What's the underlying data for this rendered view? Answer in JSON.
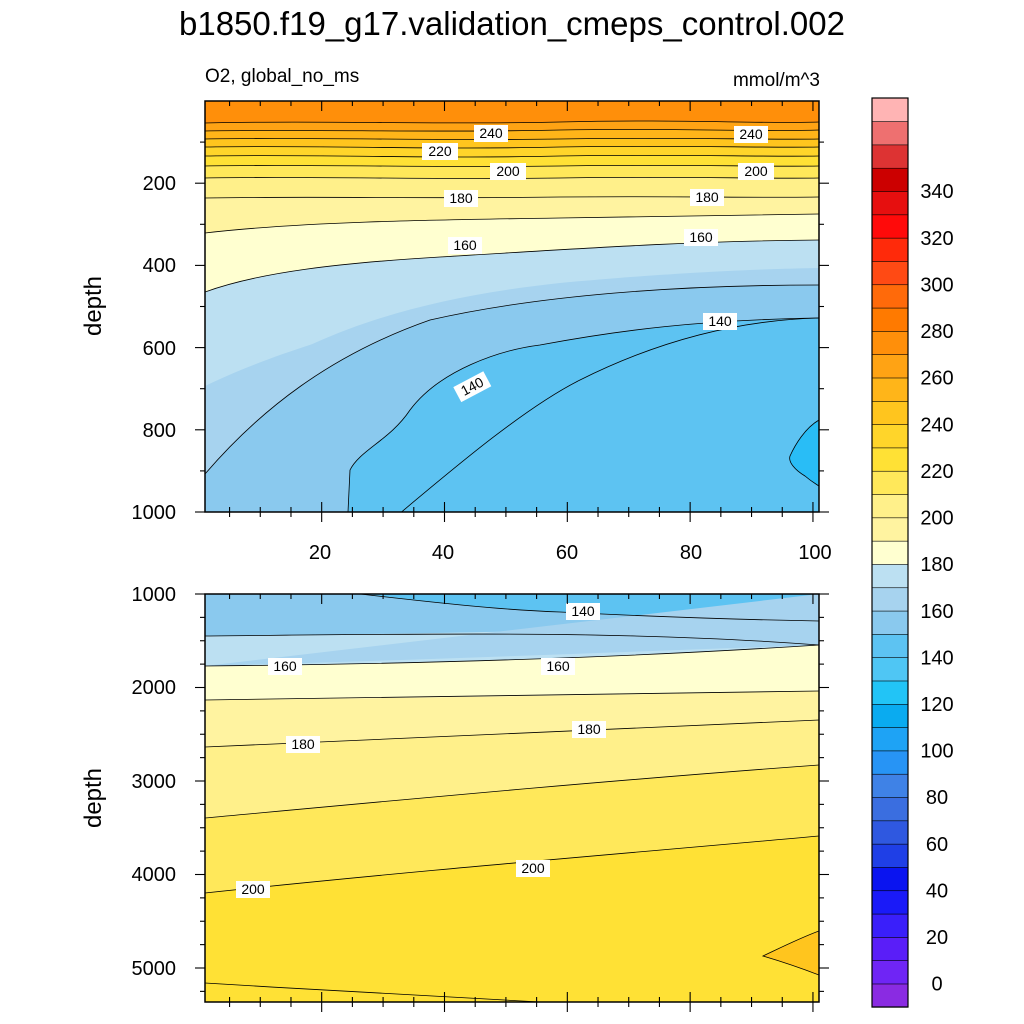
{
  "chart_data": {
    "type": "contour",
    "title": "b1850.f19_g17.validation_cmeps_control.002",
    "variable_label": "O2, global_no_ms",
    "units_label": "mmol/m^3",
    "x_ticks": [
      "20",
      "40",
      "60",
      "80",
      "100"
    ],
    "colorbar": {
      "levels": [
        0,
        10,
        20,
        30,
        40,
        50,
        60,
        70,
        80,
        90,
        100,
        110,
        120,
        130,
        140,
        150,
        160,
        170,
        180,
        190,
        200,
        210,
        220,
        230,
        240,
        250,
        260,
        270,
        280,
        290,
        300,
        310,
        320,
        330,
        340,
        350,
        360
      ],
      "tick_labels": [
        "0",
        "20",
        "40",
        "60",
        "80",
        "100",
        "120",
        "140",
        "160",
        "180",
        "200",
        "220",
        "240",
        "260",
        "280",
        "300",
        "320",
        "340"
      ],
      "colors": [
        "#8a2be2",
        "#6f25f5",
        "#5a1ef8",
        "#3a1ffa",
        "#1a1af8",
        "#0a14f0",
        "#1f3fe6",
        "#2f58e0",
        "#3a6ee0",
        "#3f82e6",
        "#2794f5",
        "#1ea3f5",
        "#0aabf0",
        "#22c4f6",
        "#4fc6f4",
        "#5dc3f2",
        "#8ac9ee",
        "#a7d3ef",
        "#bce0f2",
        "#ffffd0",
        "#fff3a0",
        "#fff08a",
        "#ffe85a",
        "#ffe135",
        "#ffd52a",
        "#ffc51e",
        "#ffb519",
        "#ffa314",
        "#ff8f0a",
        "#ff7a00",
        "#ff6a0a",
        "#ff4a14",
        "#ff2a0a",
        "#ff0a0a",
        "#e60f0f",
        "#cc0000",
        "#dd3333",
        "#ee7070",
        "#ffb4b4"
      ]
    },
    "panels": [
      {
        "name": "upper",
        "ylabel": "depth",
        "y_range": [
          0,
          1000
        ],
        "y_ticks": [
          "200",
          "400",
          "600",
          "800",
          "1000"
        ],
        "contour_labels": [
          "240",
          "240",
          "220",
          "200",
          "200",
          "180",
          "180",
          "160",
          "160",
          "140",
          "140"
        ]
      },
      {
        "name": "lower",
        "ylabel": "depth",
        "y_range": [
          1000,
          5400
        ],
        "y_ticks": [
          "1000",
          "2000",
          "3000",
          "4000",
          "5000"
        ],
        "contour_labels": [
          "140",
          "160",
          "160",
          "180",
          "180",
          "200",
          "200"
        ]
      }
    ]
  }
}
